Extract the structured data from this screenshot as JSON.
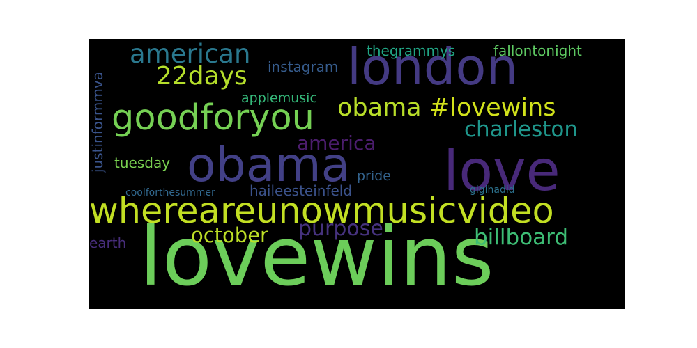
{
  "wordcloud": {
    "background": "#000000",
    "words": [
      {
        "text": "lovewins",
        "color": "#6ccd5a"
      },
      {
        "text": "love",
        "color": "#482979"
      },
      {
        "text": "london",
        "color": "#443a83"
      },
      {
        "text": "obama",
        "color": "#424086"
      },
      {
        "text": "whereareunowmusicvideo",
        "color": "#c2df23"
      },
      {
        "text": "goodforyou",
        "color": "#75d054"
      },
      {
        "text": "#lovewins",
        "color": "#d2e21b"
      },
      {
        "text": "obama",
        "color": "#b8de29"
      },
      {
        "text": "american",
        "color": "#2a788e"
      },
      {
        "text": "charleston",
        "color": "#1f968b"
      },
      {
        "text": "22days",
        "color": "#b5de2b"
      },
      {
        "text": "billboard",
        "color": "#3dbc74"
      },
      {
        "text": "america",
        "color": "#4b1d6d"
      },
      {
        "text": "october",
        "color": "#bddf26"
      },
      {
        "text": "purpose",
        "color": "#46327e"
      },
      {
        "text": "instagram",
        "color": "#365c8d"
      },
      {
        "text": "thegrammys",
        "color": "#21a685"
      },
      {
        "text": "fallontonight",
        "color": "#5ec962"
      },
      {
        "text": "applemusic",
        "color": "#35b779"
      },
      {
        "text": "tuesday",
        "color": "#7ad151"
      },
      {
        "text": "pride",
        "color": "#33638d"
      },
      {
        "text": "haileesteinfeld",
        "color": "#3b528b"
      },
      {
        "text": "coolforthesummer",
        "color": "#31688e"
      },
      {
        "text": "gigihadid",
        "color": "#2c728e"
      },
      {
        "text": "earth",
        "color": "#472d7b"
      },
      {
        "text": "justinformmva",
        "color": "#3a548c"
      }
    ]
  }
}
